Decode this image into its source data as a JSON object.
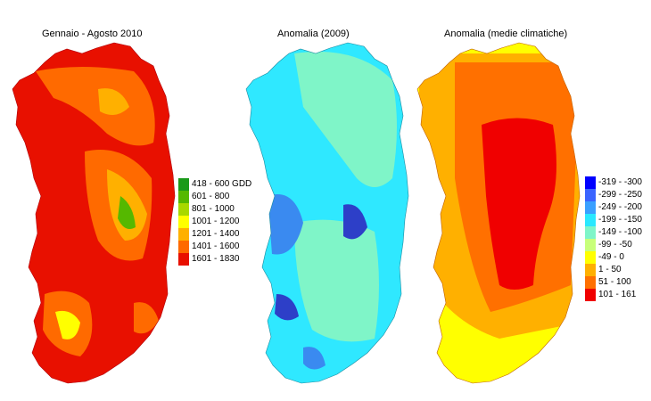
{
  "panels": [
    {
      "id": "gdd",
      "title": "Gennaio - Agosto 2010",
      "legend": [
        {
          "label": "418 - 600 GDD",
          "color": "#1a9a1a"
        },
        {
          "label": "601 - 800",
          "color": "#55b800"
        },
        {
          "label": "801 - 1000",
          "color": "#a8d800"
        },
        {
          "label": "1001 - 1200",
          "color": "#ffff00"
        },
        {
          "label": "1201 - 1400",
          "color": "#ffb000"
        },
        {
          "label": "1401 - 1600",
          "color": "#ff6a00"
        },
        {
          "label": "1601 - 1830",
          "color": "#e81000"
        }
      ],
      "fill": [
        "#e81000",
        "#ff6a00",
        "#ffb000",
        "#ffff00",
        "#55b800"
      ]
    },
    {
      "id": "anom2009",
      "title": "Anomalia (2009)",
      "fill": [
        "#2fe8ff",
        "#7ff5c8",
        "#3a8af0",
        "#2d3fc8"
      ]
    },
    {
      "id": "anomclim",
      "title": "Anomalia (medie climatiche)",
      "legend": [
        {
          "label": "-319 - -300",
          "color": "#0000ff"
        },
        {
          "label": "-299 - -250",
          "color": "#3a64ff"
        },
        {
          "label": "-249 - -200",
          "color": "#3aa0ff"
        },
        {
          "label": "-199 - -150",
          "color": "#29e8ff"
        },
        {
          "label": "-149 - -100",
          "color": "#7ff5c8"
        },
        {
          "label": "-99 - -50",
          "color": "#c8ff7a"
        },
        {
          "label": "-49 - 0",
          "color": "#ffff00"
        },
        {
          "label": "1 - 50",
          "color": "#ffb000"
        },
        {
          "label": "51 - 100",
          "color": "#ff7000"
        },
        {
          "label": "101 - 161",
          "color": "#f00000"
        }
      ],
      "fill": [
        "#ffff00",
        "#ffb000",
        "#ff7000",
        "#f00000"
      ]
    }
  ]
}
